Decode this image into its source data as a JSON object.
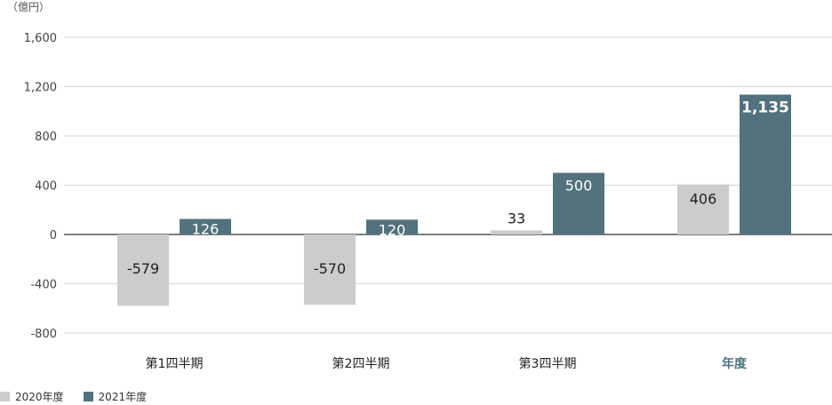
{
  "chart_data": {
    "type": "bar",
    "unit_label": "（億円）",
    "categories": [
      "第1四半期",
      "第2四半期",
      "第3四半期",
      "年度"
    ],
    "highlight_category": "年度",
    "series": [
      {
        "name": "2020年度",
        "color": "#cccccc",
        "values": [
          -579,
          -570,
          33,
          406
        ]
      },
      {
        "name": "2021年度",
        "color": "#52727d",
        "values": [
          126,
          120,
          500,
          1135
        ]
      }
    ],
    "data_labels": [
      [
        "-579",
        "-570",
        "33",
        "406"
      ],
      [
        "126",
        "120",
        "500",
        "1,135"
      ]
    ],
    "y_ticks": [
      "1,600",
      "1,200",
      "800",
      "400",
      "0",
      "-400",
      "-800"
    ],
    "y_tick_values": [
      1600,
      1200,
      800,
      400,
      0,
      -400,
      -800
    ],
    "ylim": [
      -800,
      1600
    ],
    "grid": true,
    "legend_position": "bottom-left"
  }
}
